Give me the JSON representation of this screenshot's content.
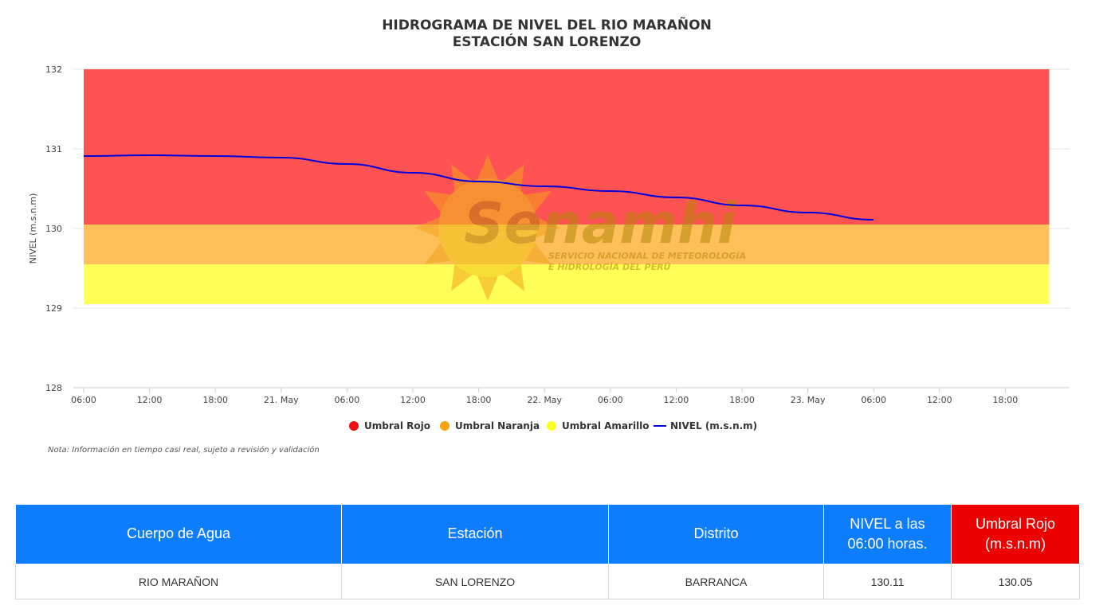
{
  "chart_data": {
    "type": "line",
    "title": "HIDROGRAMA DE NIVEL DEL RIO MARAÑON",
    "subtitle": "ESTACIÓN SAN LORENZO",
    "ylabel": "NIVEL (m.s.n.m)",
    "xlabel": "",
    "ylim": [
      128,
      132
    ],
    "xlim": [
      "20 May 06:00",
      "23 May 22:00"
    ],
    "y_ticks": [
      "128",
      "129",
      "130",
      "131",
      "132"
    ],
    "x_ticks": [
      "06:00",
      "12:00",
      "18:00",
      "21. May",
      "06:00",
      "12:00",
      "18:00",
      "22. May",
      "06:00",
      "12:00",
      "18:00",
      "23. May",
      "06:00",
      "12:00",
      "18:00"
    ],
    "grid": true,
    "legend_position": "bottom",
    "bands": [
      {
        "name": "Umbral Rojo",
        "color": "#ff5252",
        "legend_color": "#ee1111",
        "from": 130.05,
        "to": 132
      },
      {
        "name": "Umbral Naranja",
        "color": "#ffc05a",
        "legend_color": "#f7a40c",
        "from": 129.55,
        "to": 130.05
      },
      {
        "name": "Umbral Amarillo",
        "color": "#ffff55",
        "legend_color": "#ffff22",
        "from": 129.05,
        "to": 129.55
      }
    ],
    "series": [
      {
        "name": "NIVEL (m.s.n.m)",
        "color": "#0000dd",
        "x": [
          "20 May 06:00",
          "20 May 12:00",
          "20 May 18:00",
          "21 May 00:00",
          "21 May 06:00",
          "21 May 12:00",
          "21 May 18:00",
          "22 May 00:00",
          "22 May 06:00",
          "22 May 12:00",
          "22 May 18:00",
          "23 May 00:00",
          "23 May 06:00"
        ],
        "values": [
          130.91,
          130.92,
          130.91,
          130.89,
          130.81,
          130.7,
          130.59,
          130.53,
          130.47,
          130.39,
          130.29,
          130.2,
          130.11
        ]
      }
    ],
    "note": "Nota: Información en tiempo casi real, sujeto a revisión y validación"
  },
  "watermark": {
    "brand": "Senamhi",
    "line1": "SERVICIO NACIONAL DE METEOROLOGÍA",
    "line2": "E HIDROLOGÍA DEL PERÚ"
  },
  "table": {
    "headers": {
      "cuerpo": "Cuerpo de Agua",
      "estacion": "Estación",
      "distrito": "Distrito",
      "nivel_l1": "NIVEL a las",
      "nivel_l2": "06:00 horas.",
      "umbral_l1": "Umbral Rojo",
      "umbral_l2": "(m.s.n.m)"
    },
    "row": {
      "cuerpo": "RIO MARAÑON",
      "estacion": "SAN LORENZO",
      "distrito": "BARRANCA",
      "nivel": "130.11",
      "umbral": "130.05"
    }
  }
}
